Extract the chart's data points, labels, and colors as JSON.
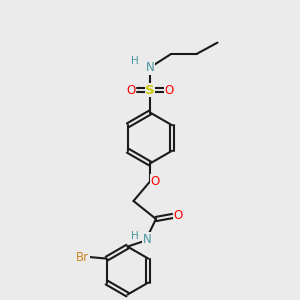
{
  "background_color": "#ebebeb",
  "bond_color": "#1a1a1a",
  "colors": {
    "N": "#4896a0",
    "O": "#ff0000",
    "S": "#cccc00",
    "Br": "#cc8822",
    "C": "#1a1a1a",
    "H": "#4896a0"
  },
  "figsize": [
    3.0,
    3.0
  ],
  "dpi": 100
}
